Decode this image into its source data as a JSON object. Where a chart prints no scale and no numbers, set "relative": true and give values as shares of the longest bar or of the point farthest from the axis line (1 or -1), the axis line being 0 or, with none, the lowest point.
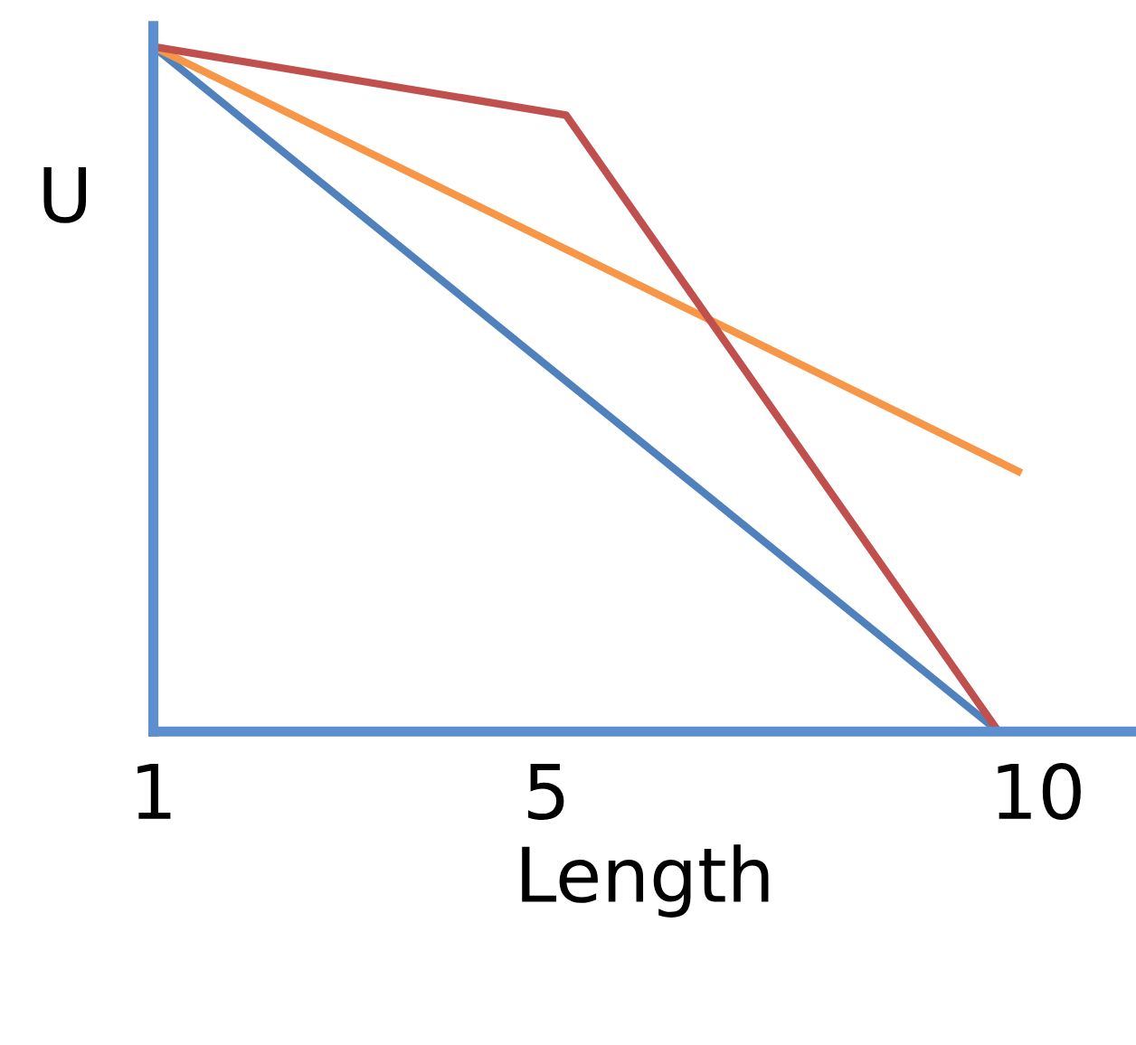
{
  "chart_data": {
    "type": "line",
    "relative": true,
    "xlabel": "Length",
    "ylabel": "U",
    "xlim": [
      1,
      11
    ],
    "xticks": [
      1,
      5,
      10
    ],
    "series": [
      {
        "color": "#4f81bd",
        "x": [
          1,
          9.6
        ],
        "values": [
          1,
          0
        ]
      },
      {
        "color": "#f79646",
        "x": [
          1,
          9.8
        ],
        "values": [
          1,
          0.38
        ]
      },
      {
        "color": "#c0504d",
        "x": [
          1,
          5.2,
          9.6
        ],
        "values": [
          1,
          0.9,
          0
        ]
      }
    ],
    "grid": false,
    "legend": false,
    "marker": "none",
    "line_style": "solid"
  }
}
